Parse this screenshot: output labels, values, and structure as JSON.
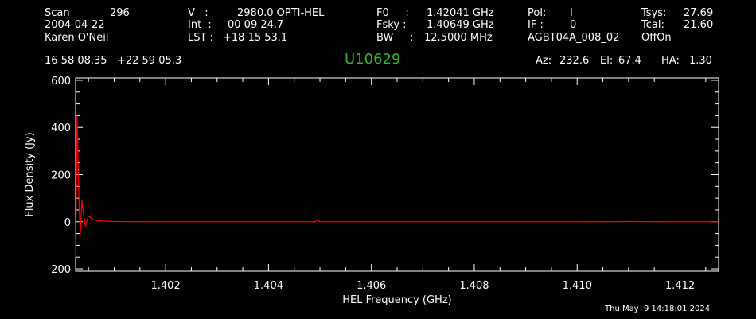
{
  "header": {
    "scan_label": "Scan",
    "scan_value": "296",
    "date": "2004-04-22",
    "observer": "Karen O'Neil",
    "v_label": "V   :",
    "v_value": "2980.0 OPTI-HEL",
    "int_label": "Int  :",
    "int_value": "00 09 24.7",
    "lst_label": "LST :",
    "lst_value": "+18 15 53.1",
    "f0_label": "F0     :",
    "f0_value": "1.42041 GHz",
    "fsky_label": "Fsky :",
    "fsky_value": "1.40649 GHz",
    "bw_label": "BW     :",
    "bw_value": "12.5000 MHz",
    "pol_label": "Pol:",
    "pol_value": "I",
    "if_label": "IF :",
    "if_value": "0",
    "project": "AGBT04A_008_02",
    "tsys_label": "Tsys:",
    "tsys_value": "27.69",
    "tcal_label": "Tcal:",
    "tcal_value": "21.60",
    "mode": "OffOn",
    "coords": "16 58 08.35   +22 59 05.3",
    "source": "U10629",
    "az_label": "Az:",
    "az_value": "232.6",
    "el_label": "El:",
    "el_value": "67.4",
    "ha_label": "HA:",
    "ha_value": "1.30",
    "timestamp": "Thu May  9 14:18:01 2024"
  },
  "colors": {
    "spectrum": "#ff0000",
    "source": "#2fb52f",
    "axes": "#ffffff"
  },
  "chart_data": {
    "type": "line",
    "xlabel": "HEL Frequency (GHz)",
    "ylabel": "Flux Density (Jy)",
    "xlim": [
      1.40025,
      1.41275
    ],
    "ylim": [
      -210,
      610
    ],
    "x_ticks": [
      1.402,
      1.404,
      1.406,
      1.408,
      1.41,
      1.412
    ],
    "x_tick_labels": [
      "1.402",
      "1.404",
      "1.406",
      "1.408",
      "1.410",
      "1.412"
    ],
    "y_ticks": [
      -200,
      0,
      200,
      400,
      600
    ],
    "y_tick_labels": [
      "-200",
      "0",
      "200",
      "400",
      "600"
    ],
    "grid": false,
    "series": [
      {
        "x": [
          1.40025,
          1.40028,
          1.40031,
          1.40034,
          1.40037,
          1.4004,
          1.40044,
          1.4005,
          1.4006,
          1.40075,
          1.401,
          1.402,
          1.403,
          1.404,
          1.4049,
          1.40495,
          1.405,
          1.406,
          1.408,
          1.41,
          1.411,
          1.412,
          1.41275
        ],
        "y": [
          -150,
          450,
          130,
          -60,
          90,
          40,
          -20,
          25,
          8,
          3,
          1,
          0,
          0,
          0,
          0,
          6,
          0,
          0,
          0,
          0,
          1,
          0,
          0
        ]
      }
    ]
  }
}
